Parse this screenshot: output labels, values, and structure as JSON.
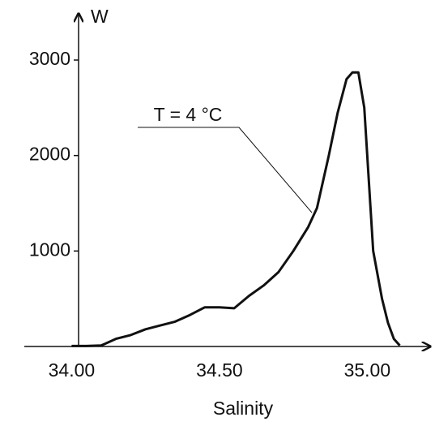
{
  "chart_data": {
    "type": "line",
    "x_label": "Salinity",
    "y_label": "W",
    "annotation": "T = 4 °C",
    "x": [
      34.0,
      34.05,
      34.1,
      34.15,
      34.2,
      34.25,
      34.3,
      34.35,
      34.4,
      34.45,
      34.5,
      34.55,
      34.6,
      34.65,
      34.7,
      34.75,
      34.8,
      34.83,
      34.87,
      34.9,
      34.93,
      34.95,
      34.97,
      34.99,
      35.02,
      35.05,
      35.07,
      35.09,
      35.11
    ],
    "series": [
      {
        "color": "#111111",
        "values": [
          5,
          5,
          10,
          80,
          120,
          180,
          220,
          260,
          330,
          410,
          410,
          400,
          530,
          640,
          780,
          1000,
          1250,
          1450,
          2000,
          2450,
          2800,
          2870,
          2870,
          2500,
          1000,
          500,
          250,
          80,
          10
        ]
      }
    ],
    "xlim": [
      33.84,
      35.21
    ],
    "xticks": [
      {
        "value": 34,
        "label": "34.00"
      },
      {
        "value": 34.5,
        "label": "34.50"
      },
      {
        "value": 35,
        "label": "35.00"
      }
    ],
    "ylim": [
      0,
      3000
    ],
    "yticks": [
      1000,
      2000,
      3000
    ]
  }
}
